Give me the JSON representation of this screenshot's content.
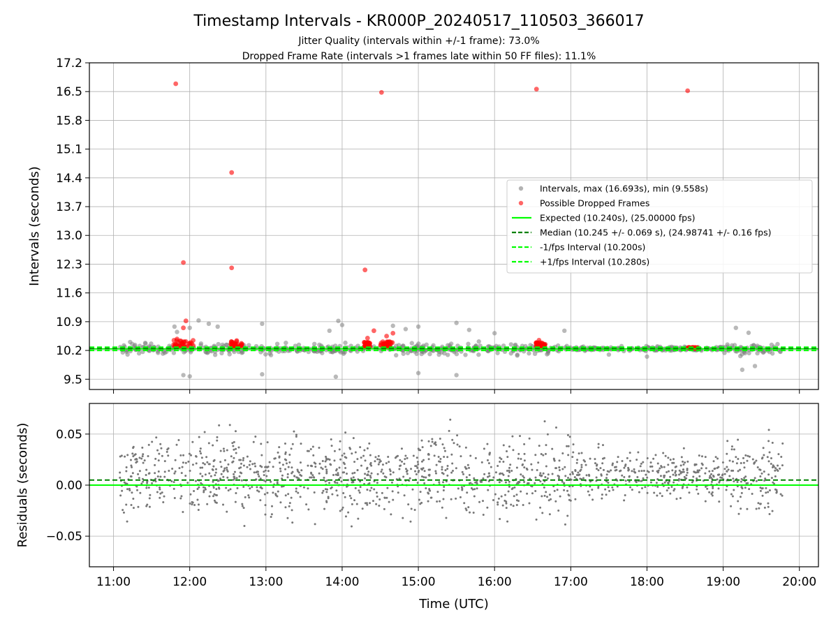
{
  "chart_data": {
    "title": "Timestamp Intervals - KR000P_20240517_110503_366017",
    "subtitle_lines": [
      "Jitter Quality (intervals within +/-1 frame): 73.0%",
      "Dropped Frame Rate (intervals >1 frames late within 50 FF files): 11.1%"
    ],
    "panels": [
      {
        "id": "intervals",
        "type": "scatter",
        "ylabel": "Intervals (seconds)",
        "ylim": [
          9.25,
          17.2
        ],
        "yticks": [
          "9.5",
          "10.2",
          "10.9",
          "11.6",
          "12.3",
          "13.0",
          "13.7",
          "14.4",
          "15.1",
          "15.8",
          "16.5",
          "17.2"
        ],
        "grid": true,
        "legend_placement": "center-right",
        "series": [
          {
            "name": "Intervals, max (16.693s), min (9.558s)",
            "kind": "scatter",
            "color": "#808080",
            "note_band": {
              "x_range": [
                "11:05",
                "19:47"
              ],
              "center": 10.24,
              "spread": 0.12
            },
            "points": [
              [
                "11:48",
                10.78
              ],
              [
                "11:50",
                10.65
              ],
              [
                "12:00",
                10.75
              ],
              [
                "12:07",
                10.93
              ],
              [
                "12:15",
                10.85
              ],
              [
                "12:22",
                10.78
              ],
              [
                "12:57",
                10.85
              ],
              [
                "13:50",
                10.68
              ],
              [
                "13:57",
                10.92
              ],
              [
                "14:00",
                10.82
              ],
              [
                "14:40",
                10.8
              ],
              [
                "14:50",
                10.72
              ],
              [
                "15:00",
                10.78
              ],
              [
                "15:30",
                10.87
              ],
              [
                "15:40",
                10.7
              ],
              [
                "16:00",
                10.62
              ],
              [
                "16:55",
                10.68
              ],
              [
                "19:10",
                10.75
              ],
              [
                "19:20",
                10.63
              ],
              [
                "11:55",
                9.6
              ],
              [
                "12:00",
                9.57
              ],
              [
                "12:57",
                9.62
              ],
              [
                "13:55",
                9.56
              ],
              [
                "15:00",
                9.65
              ],
              [
                "15:30",
                9.6
              ],
              [
                "19:15",
                9.73
              ],
              [
                "19:25",
                9.82
              ],
              [
                "18:00",
                10.05
              ],
              [
                "17:30",
                10.1
              ]
            ]
          },
          {
            "name": "Possible Dropped Frames",
            "kind": "scatter",
            "color": "#ff0000",
            "points": [
              [
                "11:49",
                16.69
              ],
              [
                "11:55",
                12.34
              ],
              [
                "11:57",
                10.92
              ],
              [
                "11:55",
                10.75
              ],
              [
                "11:50",
                10.48
              ],
              [
                "12:33",
                14.53
              ],
              [
                "12:33",
                12.21
              ],
              [
                "12:37",
                10.44
              ],
              [
                "14:18",
                12.16
              ],
              [
                "14:31",
                16.48
              ],
              [
                "14:25",
                10.68
              ],
              [
                "14:20",
                10.5
              ],
              [
                "14:35",
                10.55
              ],
              [
                "14:40",
                10.62
              ],
              [
                "16:33",
                16.56
              ],
              [
                "16:35",
                10.45
              ],
              [
                "18:32",
                16.52
              ]
            ],
            "clusters": [
              {
                "x_range": [
                  "11:47",
                  "12:03"
                ],
                "y_range": [
                  10.27,
                  10.45
                ]
              },
              {
                "x_range": [
                  "12:32",
                  "12:42"
                ],
                "y_range": [
                  10.27,
                  10.42
                ]
              },
              {
                "x_range": [
                  "14:17",
                  "14:22"
                ],
                "y_range": [
                  10.27,
                  10.4
                ]
              },
              {
                "x_range": [
                  "14:30",
                  "14:40"
                ],
                "y_range": [
                  10.27,
                  10.42
                ]
              },
              {
                "x_range": [
                  "16:32",
                  "16:40"
                ],
                "y_range": [
                  10.27,
                  10.4
                ]
              },
              {
                "x_range": [
                  "18:32",
                  "18:40"
                ],
                "y_range": [
                  10.25,
                  10.28
                ]
              }
            ]
          },
          {
            "name": "Expected (10.240s), (25.00000 fps)",
            "kind": "hline",
            "y": 10.24,
            "color": "#00ff00",
            "style": "solid"
          },
          {
            "name": "Median (10.245 +/- 0.069 s), (24.98741 +/- 0.16 fps)",
            "kind": "hline",
            "y": 10.245,
            "color": "#008000",
            "style": "dashed"
          },
          {
            "name": "-1/fps Interval (10.200s)",
            "kind": "hline",
            "y": 10.2,
            "color": "#00ff00",
            "style": "dashed"
          },
          {
            "name": "+1/fps Interval (10.280s)",
            "kind": "hline",
            "y": 10.28,
            "color": "#00ff00",
            "style": "dashed"
          }
        ]
      },
      {
        "id": "residuals",
        "type": "scatter",
        "ylabel": "Residuals (seconds)",
        "ylim": [
          -0.08,
          0.08
        ],
        "yticks": [
          "−0.05",
          "0.00",
          "0.05"
        ],
        "ytick_values": [
          -0.05,
          0.0,
          0.05
        ],
        "grid": true,
        "series": [
          {
            "kind": "scatter",
            "color": "#808080",
            "note_band": {
              "x_range": [
                "11:05",
                "19:47"
              ],
              "center": 0.01,
              "spread": 0.03
            }
          },
          {
            "kind": "hline",
            "y": 0.0,
            "color": "#00ff00",
            "style": "solid"
          },
          {
            "kind": "hline",
            "y": 0.005,
            "color": "#008000",
            "style": "dashed"
          }
        ]
      }
    ],
    "x": {
      "label": "Time (UTC)",
      "range": [
        "10:41",
        "20:15"
      ],
      "ticks": [
        "11:00",
        "12:00",
        "13:00",
        "14:00",
        "15:00",
        "16:00",
        "17:00",
        "18:00",
        "19:00",
        "20:00"
      ]
    }
  }
}
